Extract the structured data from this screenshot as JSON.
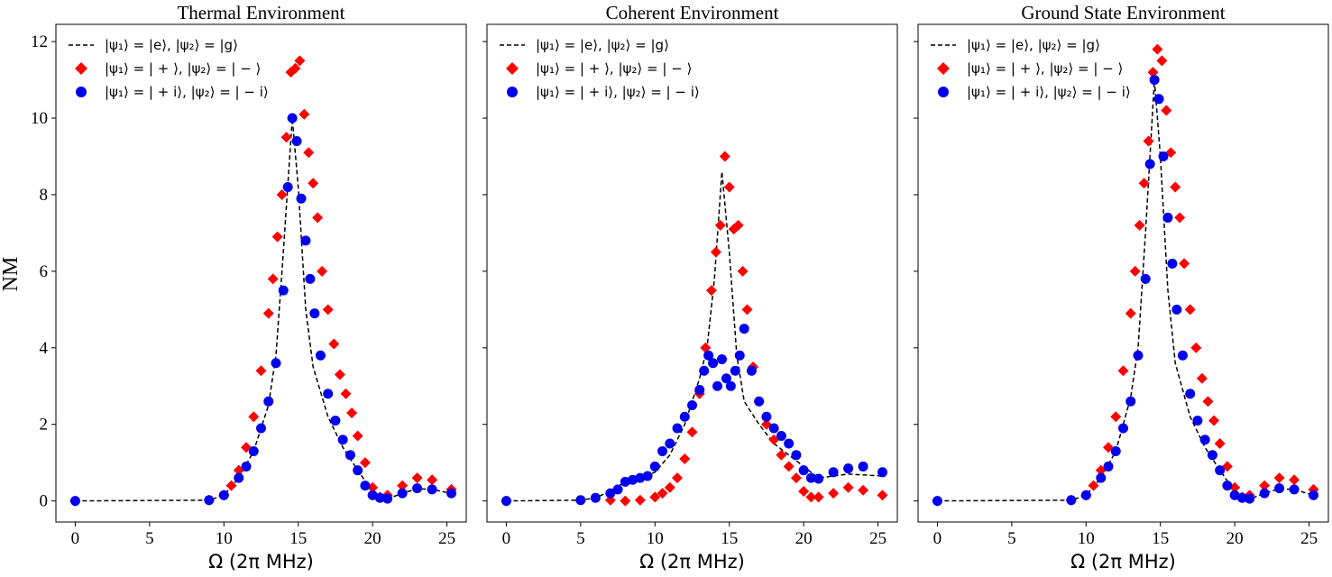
{
  "figure": {
    "ylabel": "NM",
    "xlabel": "Ω (2π MHz)"
  },
  "legend": {
    "entries": [
      {
        "label": "|ψ₁⟩ = |e⟩, |ψ₂⟩ = |g⟩",
        "marker": "dashed-line",
        "color": "#000000"
      },
      {
        "label": "|ψ₁⟩ = | + ⟩, |ψ₂⟩ = | − ⟩",
        "marker": "diamond",
        "color": "#ff0000"
      },
      {
        "label": "|ψ₁⟩ = | + i⟩, |ψ₂⟩ = | − i⟩",
        "marker": "circle",
        "color": "#0000ee"
      }
    ]
  },
  "chart_data": [
    {
      "type": "scatter",
      "title": "Thermal Environment",
      "xlim": [
        -1.3,
        26.3
      ],
      "ylim": [
        -0.55,
        12.45
      ],
      "xticks": [
        0,
        5,
        10,
        15,
        20,
        25
      ],
      "yticks": [
        0,
        2,
        4,
        6,
        8,
        10,
        12
      ],
      "series": [
        {
          "name": "|ψ₁⟩ = |e⟩, |ψ₂⟩ = |g⟩",
          "style": "dashed-line",
          "x": [
            0,
            9,
            10,
            11,
            12,
            13,
            13.5,
            14,
            14.6,
            15,
            15.5,
            16,
            17,
            18,
            19,
            20,
            20.5,
            21,
            22,
            23,
            24,
            25.3
          ],
          "y": [
            0,
            0.02,
            0.15,
            0.6,
            1.3,
            2.5,
            3.8,
            6.5,
            10.0,
            8.2,
            5.0,
            3.5,
            2.2,
            1.4,
            0.8,
            0.25,
            0.1,
            0.05,
            0.2,
            0.32,
            0.3,
            0.2
          ]
        },
        {
          "name": "|ψ₁⟩ = | + ⟩, |ψ₂⟩ = | − ⟩",
          "style": "diamond",
          "x": [
            0,
            9,
            10,
            10.5,
            11,
            11.5,
            12,
            12.5,
            13,
            13.3,
            13.6,
            13.9,
            14.2,
            14.5,
            14.8,
            15.1,
            15.4,
            15.7,
            16,
            16.3,
            16.6,
            17,
            17.4,
            17.8,
            18.2,
            18.6,
            19,
            19.5,
            20,
            20.5,
            21,
            22,
            23,
            24,
            25.3
          ],
          "y": [
            0,
            0.02,
            0.15,
            0.4,
            0.8,
            1.4,
            2.2,
            3.4,
            4.9,
            5.8,
            6.9,
            8.0,
            9.5,
            11.2,
            11.3,
            11.5,
            10.1,
            9.1,
            8.3,
            7.4,
            6.0,
            5.0,
            4.1,
            3.3,
            2.8,
            2.3,
            1.7,
            1.0,
            0.35,
            0.1,
            0.15,
            0.4,
            0.6,
            0.55,
            0.3
          ]
        },
        {
          "name": "|ψ₁⟩ = | + i⟩, |ψ₂⟩ = | − i⟩",
          "style": "circle",
          "x": [
            0,
            9,
            10,
            11,
            11.5,
            12,
            12.5,
            13,
            13.5,
            14,
            14.3,
            14.6,
            14.9,
            15.2,
            15.5,
            15.8,
            16.1,
            16.5,
            17,
            17.5,
            18,
            18.5,
            19,
            19.5,
            20,
            20.5,
            21,
            22,
            23,
            24,
            25.3
          ],
          "y": [
            0,
            0.02,
            0.15,
            0.6,
            0.9,
            1.3,
            1.9,
            2.6,
            3.6,
            5.5,
            8.2,
            10.0,
            9.4,
            7.9,
            6.8,
            5.8,
            4.9,
            3.8,
            2.8,
            2.1,
            1.6,
            1.2,
            0.8,
            0.4,
            0.15,
            0.08,
            0.06,
            0.2,
            0.33,
            0.3,
            0.2
          ]
        }
      ]
    },
    {
      "type": "scatter",
      "title": "Coherent Environment",
      "xlim": [
        -1.3,
        26.3
      ],
      "ylim": [
        -0.55,
        12.45
      ],
      "xticks": [
        0,
        5,
        10,
        15,
        20,
        25
      ],
      "yticks": [
        0,
        2,
        4,
        6,
        8,
        10,
        12
      ],
      "series": [
        {
          "name": "|ψ₁⟩ = |e⟩, |ψ₂⟩ = |g⟩",
          "style": "dashed-line",
          "x": [
            0,
            5,
            6,
            7,
            8,
            9,
            10,
            11,
            12,
            12.5,
            13,
            13.5,
            14,
            14.5,
            15,
            15.5,
            16,
            16.5,
            17,
            18,
            19,
            20,
            21,
            22,
            23,
            24,
            25.3
          ],
          "y": [
            0,
            0.02,
            0.08,
            0.25,
            0.5,
            0.6,
            0.75,
            1.2,
            2.0,
            2.6,
            3.2,
            4.0,
            5.8,
            8.6,
            6.5,
            3.8,
            2.6,
            2.3,
            2.0,
            1.5,
            1.2,
            0.9,
            0.6,
            0.65,
            0.7,
            0.68,
            0.65
          ]
        },
        {
          "name": "|ψ₁⟩ = | + ⟩, |ψ₂⟩ = | − ⟩",
          "style": "diamond",
          "x": [
            0,
            7,
            8,
            9,
            10,
            10.5,
            11,
            11.5,
            12,
            12.5,
            13,
            13.4,
            13.8,
            14.1,
            14.4,
            14.7,
            15,
            15.3,
            15.6,
            15.9,
            16.2,
            16.6,
            17,
            17.5,
            18,
            18.5,
            19,
            19.5,
            20,
            20.5,
            21,
            22,
            23,
            24,
            25.3
          ],
          "y": [
            0,
            0.02,
            0.0,
            0.02,
            0.1,
            0.2,
            0.35,
            0.6,
            1.1,
            1.8,
            2.8,
            4.0,
            5.5,
            6.5,
            7.2,
            9.0,
            8.2,
            7.1,
            7.2,
            6.0,
            5.0,
            3.5,
            2.6,
            2.0,
            1.6,
            1.2,
            0.9,
            0.6,
            0.25,
            0.1,
            0.1,
            0.2,
            0.35,
            0.28,
            0.15
          ]
        },
        {
          "name": "|ψ₁⟩ = | + i⟩, |ψ₂⟩ = | − i⟩",
          "style": "circle",
          "x": [
            0,
            5,
            6,
            7,
            7.5,
            8,
            8.5,
            9,
            9.5,
            10,
            10.5,
            11,
            11.5,
            12,
            12.5,
            13,
            13.3,
            13.6,
            13.9,
            14.2,
            14.5,
            14.8,
            15.1,
            15.4,
            15.7,
            16,
            16.5,
            17,
            17.5,
            18,
            18.5,
            19,
            19.5,
            20,
            20.5,
            21,
            22,
            23,
            24,
            25.3
          ],
          "y": [
            0,
            0.02,
            0.08,
            0.2,
            0.3,
            0.5,
            0.55,
            0.6,
            0.65,
            0.9,
            1.3,
            1.5,
            1.9,
            2.2,
            2.5,
            2.9,
            3.4,
            3.8,
            3.6,
            3.0,
            3.7,
            3.2,
            3.0,
            3.4,
            3.8,
            4.5,
            3.4,
            2.6,
            2.2,
            1.9,
            1.7,
            1.5,
            1.2,
            0.8,
            0.6,
            0.58,
            0.75,
            0.85,
            0.9,
            0.75
          ]
        }
      ]
    },
    {
      "type": "scatter",
      "title": "Ground State Environment",
      "xlim": [
        -1.3,
        26.3
      ],
      "ylim": [
        -0.55,
        12.45
      ],
      "xticks": [
        0,
        5,
        10,
        15,
        20,
        25
      ],
      "yticks": [
        0,
        2,
        4,
        6,
        8,
        10,
        12
      ],
      "series": [
        {
          "name": "|ψ₁⟩ = |e⟩, |ψ₂⟩ = |g⟩",
          "style": "dashed-line",
          "x": [
            0,
            9,
            10,
            11,
            12,
            13,
            13.5,
            14,
            14.6,
            15,
            15.5,
            16,
            17,
            18,
            19,
            20,
            20.5,
            21,
            22,
            23,
            24,
            25.3
          ],
          "y": [
            0,
            0.02,
            0.15,
            0.6,
            1.3,
            2.7,
            4.0,
            7.0,
            11.0,
            9.0,
            5.5,
            3.6,
            2.2,
            1.4,
            0.8,
            0.25,
            0.1,
            0.05,
            0.2,
            0.32,
            0.3,
            0.15
          ]
        },
        {
          "name": "|ψ₁⟩ = | + ⟩, |ψ₂⟩ = | − ⟩",
          "style": "diamond",
          "x": [
            0,
            9,
            10,
            10.5,
            11,
            11.5,
            12,
            12.5,
            13,
            13.3,
            13.6,
            13.9,
            14.2,
            14.5,
            14.8,
            15.1,
            15.4,
            15.7,
            16,
            16.3,
            16.6,
            17,
            17.4,
            17.8,
            18.2,
            18.6,
            19,
            19.5,
            20,
            20.5,
            21,
            22,
            23,
            24,
            25.3
          ],
          "y": [
            0,
            0.02,
            0.15,
            0.4,
            0.8,
            1.4,
            2.2,
            3.4,
            4.9,
            6.0,
            7.2,
            8.3,
            9.4,
            11.2,
            11.8,
            11.5,
            10.2,
            9.1,
            8.2,
            7.4,
            6.2,
            5.0,
            4.0,
            3.2,
            2.6,
            2.1,
            1.5,
            0.9,
            0.35,
            0.1,
            0.15,
            0.4,
            0.6,
            0.55,
            0.3
          ]
        },
        {
          "name": "|ψ₁⟩ = | + i⟩, |ψ₂⟩ = | − i⟩",
          "style": "circle",
          "x": [
            0,
            9,
            10,
            11,
            11.5,
            12,
            12.5,
            13,
            13.5,
            14,
            14.3,
            14.6,
            14.9,
            15.2,
            15.5,
            15.8,
            16.1,
            16.5,
            17,
            17.5,
            18,
            18.5,
            19,
            19.5,
            20,
            20.5,
            21,
            22,
            23,
            24,
            25.3
          ],
          "y": [
            0,
            0.02,
            0.15,
            0.6,
            0.9,
            1.3,
            1.9,
            2.6,
            3.8,
            5.8,
            8.8,
            11.0,
            10.5,
            9.0,
            7.4,
            6.2,
            5.0,
            3.8,
            2.8,
            2.1,
            1.6,
            1.2,
            0.8,
            0.4,
            0.15,
            0.08,
            0.06,
            0.2,
            0.33,
            0.3,
            0.15
          ]
        }
      ]
    }
  ]
}
